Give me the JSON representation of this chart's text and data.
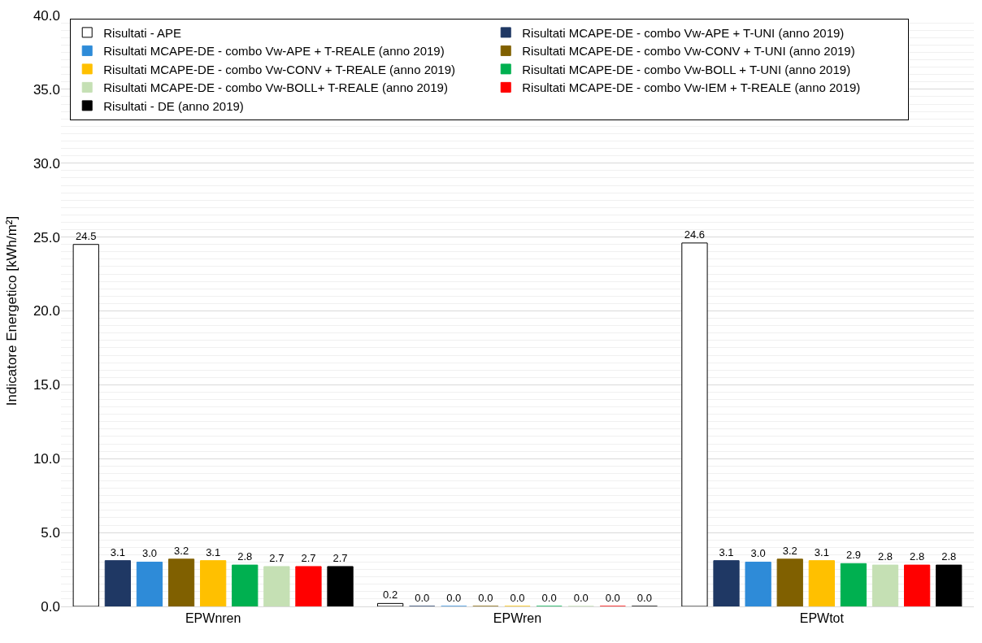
{
  "chart_data": {
    "type": "bar",
    "ylabel": "Indicatore Energetico [kWh/m²]",
    "categories": [
      "EPWnren",
      "EPWren",
      "EPWtot"
    ],
    "series": [
      {
        "name": "Risultati - APE",
        "color": "#ffffff",
        "values": [
          24.5,
          0.2,
          24.6
        ],
        "value_labels": [
          "24.5",
          "0.2",
          "24.6"
        ]
      },
      {
        "name": "Risultati MCAPE-DE - combo Vw-APE + T-UNI (anno 2019)",
        "color": "#1f3864",
        "values": [
          3.1,
          0.0,
          3.1
        ],
        "value_labels": [
          "3.1",
          "0.0",
          "3.1"
        ]
      },
      {
        "name": "Risultati MCAPE-DE - combo Vw-APE + T-REALE (anno 2019)",
        "color": "#2e8bd8",
        "values": [
          3.0,
          0.0,
          3.0
        ],
        "value_labels": [
          "3.0",
          "0.0",
          "3.0"
        ]
      },
      {
        "name": "Risultati MCAPE-DE - combo Vw-CONV + T-UNI (anno 2019)",
        "color": "#806000",
        "values": [
          3.2,
          0.0,
          3.2
        ],
        "value_labels": [
          "3.2",
          "0.0",
          "3.2"
        ]
      },
      {
        "name": "Risultati MCAPE-DE - combo Vw-CONV + T-REALE (anno 2019)",
        "color": "#ffc000",
        "values": [
          3.1,
          0.0,
          3.1
        ],
        "value_labels": [
          "3.1",
          "0.0",
          "3.1"
        ]
      },
      {
        "name": "Risultati MCAPE-DE - combo Vw-BOLL + T-UNI (anno 2019)",
        "color": "#00b050",
        "values": [
          2.8,
          0.0,
          2.9
        ],
        "value_labels": [
          "2.8",
          "0.0",
          "2.9"
        ]
      },
      {
        "name": "Risultati MCAPE-DE - combo Vw-BOLL+ T-REALE (anno 2019)",
        "color": "#c5e0b4",
        "values": [
          2.7,
          0.0,
          2.8
        ],
        "value_labels": [
          "2.7",
          "0.0",
          "2.8"
        ]
      },
      {
        "name": "Risultati MCAPE-DE - combo Vw-IEM + T-REALE (anno 2019)",
        "color": "#ff0000",
        "values": [
          2.7,
          0.0,
          2.8
        ],
        "value_labels": [
          "2.7",
          "0.0",
          "2.8"
        ]
      },
      {
        "name": "Risultati - DE (anno 2019)",
        "color": "#000000",
        "values": [
          2.7,
          0.0,
          2.8
        ],
        "value_labels": [
          "2.7",
          "0.0",
          "2.8"
        ]
      }
    ],
    "ylim": [
      0,
      40
    ],
    "yticks": [
      {
        "value": 0,
        "label": "0.0"
      },
      {
        "value": 5,
        "label": "5.0"
      },
      {
        "value": 10,
        "label": "10.0"
      },
      {
        "value": 15,
        "label": "15.0"
      },
      {
        "value": 20,
        "label": "20.0"
      },
      {
        "value": 25,
        "label": "25.0"
      },
      {
        "value": 30,
        "label": "30.0"
      },
      {
        "value": 35,
        "label": "35.0"
      },
      {
        "value": 40,
        "label": "40.0"
      }
    ],
    "grid": "y",
    "legend": "top"
  }
}
